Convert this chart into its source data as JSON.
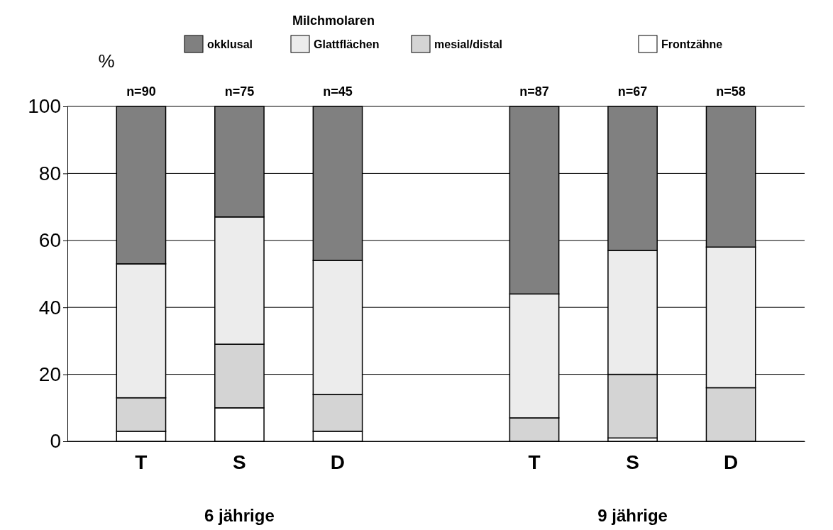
{
  "chart_data": {
    "type": "bar",
    "stacked": true,
    "ylabel": "%",
    "legend_title": "Milchmolaren",
    "legend": "top",
    "grid": "y",
    "categories": [
      "T",
      "S",
      "D",
      null,
      "T",
      "S",
      "D"
    ],
    "series": [
      {
        "name": "Frontzähne",
        "color": "#ffffff",
        "values": [
          3,
          10,
          3,
          null,
          0,
          1,
          0
        ]
      },
      {
        "name": "mesial/distal",
        "color": "#d4d4d4",
        "values": [
          10,
          19,
          11,
          null,
          7,
          19,
          16
        ]
      },
      {
        "name": "Glattflächen",
        "color": "#ececec",
        "values": [
          40,
          38,
          40,
          null,
          37,
          37,
          42
        ]
      },
      {
        "name": "okklusal",
        "color": "#808080",
        "values": [
          47,
          33,
          46,
          null,
          56,
          43,
          42
        ]
      }
    ],
    "ylim": [
      0,
      100
    ],
    "yticks": [
      0,
      20,
      40,
      60,
      80,
      100
    ],
    "annotations": [
      "n=90",
      "n=75",
      "n=45",
      "n=87",
      "n=67",
      "n=58",
      "6 jährige",
      "9 jährige"
    ]
  }
}
